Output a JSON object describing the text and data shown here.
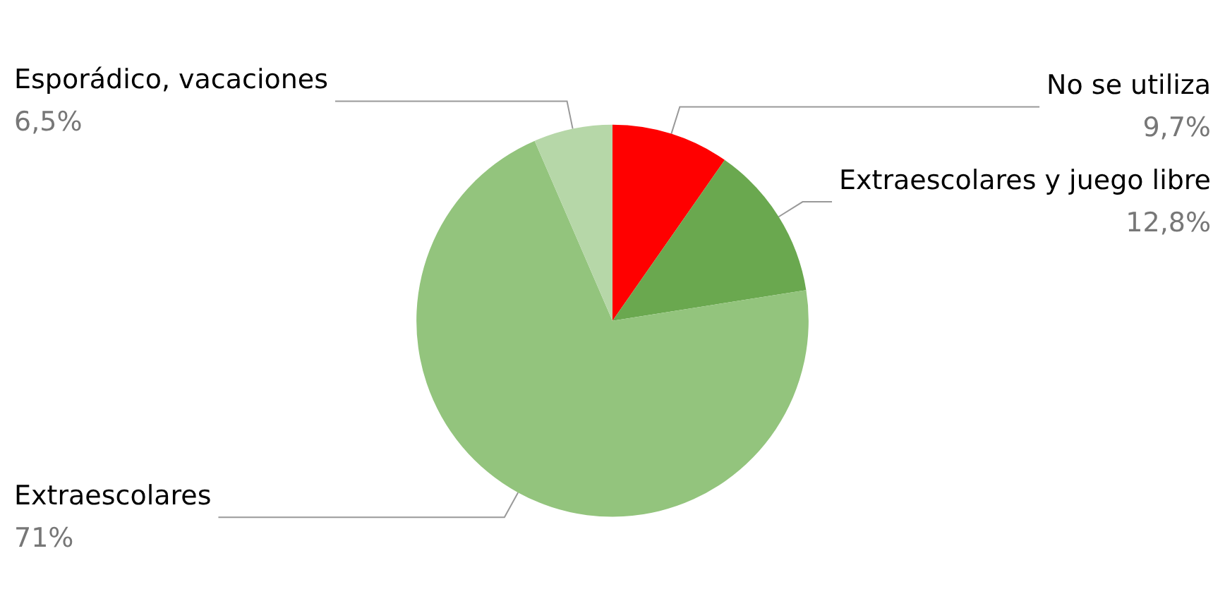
{
  "chart_data": {
    "type": "pie",
    "categories": [
      "No se utiliza",
      "Extraescolares y juego libre",
      "Extraescolares",
      "Esporádico, vacaciones"
    ],
    "values": [
      9.7,
      12.8,
      71,
      6.5
    ],
    "colors": [
      "#ff0000",
      "#6aa84f",
      "#93c47d",
      "#b6d7a8"
    ],
    "value_labels": [
      "9,7%",
      "12,8%",
      "71%",
      "6,5%"
    ],
    "legend": false
  }
}
